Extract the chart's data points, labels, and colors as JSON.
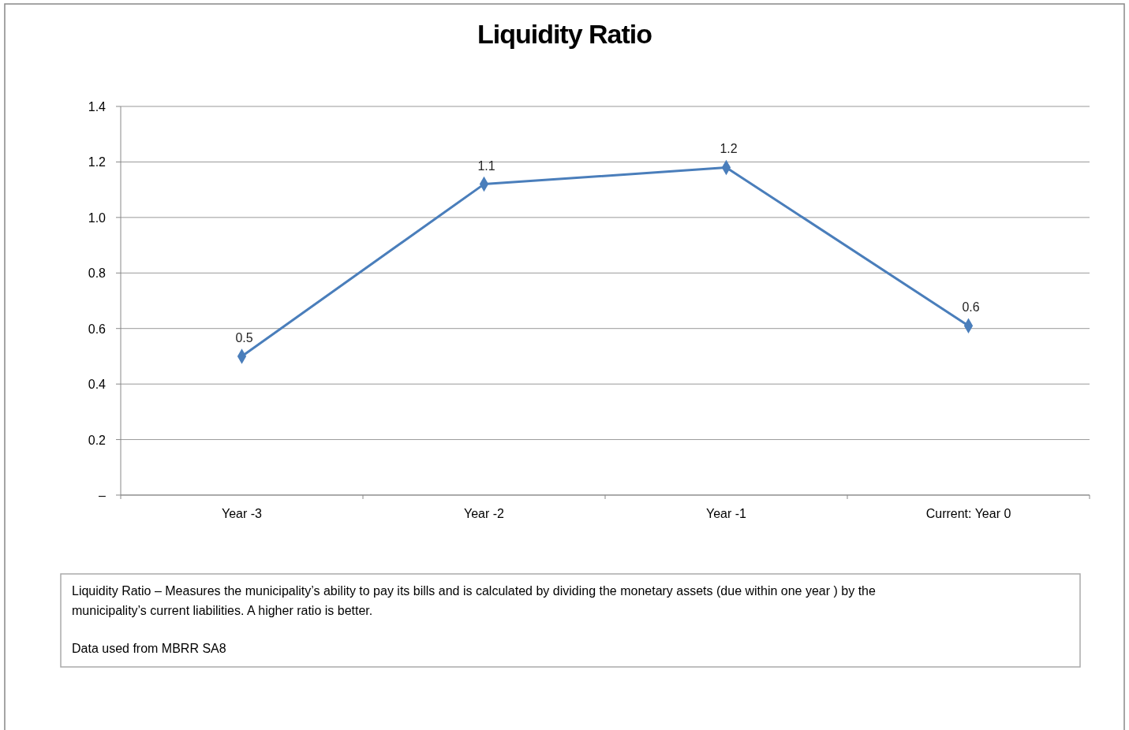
{
  "chart_data": {
    "type": "line",
    "title": "Liquidity Ratio",
    "categories": [
      "Year -3",
      "Year -2",
      "Year -1",
      "Current: Year 0"
    ],
    "series": [
      {
        "color": "#4a7ebb",
        "values": [
          0.5,
          1.12,
          1.18,
          0.61
        ],
        "value_labels": [
          "0.5",
          "1.1",
          "1.2",
          "0.6"
        ]
      }
    ],
    "ylim": [
      0,
      1.4
    ],
    "yticks": [
      {
        "value": 0,
        "label": "–"
      },
      0.2,
      0.4,
      0.6,
      0.8,
      {
        "value": 1,
        "label": "1.0"
      },
      1.2,
      1.4
    ],
    "grid": "y",
    "marker": "diamond",
    "line_style": "solid",
    "annotations": [
      "Liquidity Ratio – Measures the municipality’s ability to pay its bills and is calculated by dividing the monetary assets (due within one year ) by the municipality’s current liabilities. A higher ratio is better.",
      "Data used from MBRR SA8"
    ]
  }
}
